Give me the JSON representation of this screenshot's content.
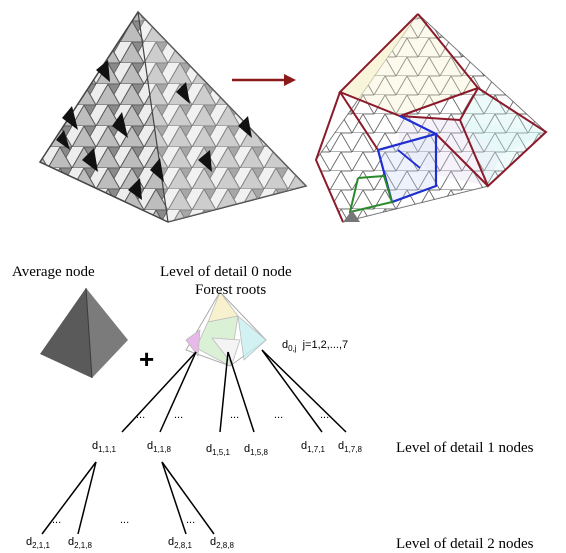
{
  "labels": {
    "average_node": "Average node",
    "lod0_line1": "Level of detail 0 node",
    "lod0_line2": "Forest roots",
    "lod1": "Level of detail 1 nodes",
    "lod2": "Level of detail 2 nodes",
    "plus": "+",
    "ellipsis": "...",
    "d0_base": "d",
    "d0_sub": "0,j",
    "d0_range": "j=1,2,...,7"
  },
  "lod1_nodes": [
    {
      "base": "d",
      "sub": "1,1,1"
    },
    {
      "base": "d",
      "sub": "1,1,8"
    },
    {
      "base": "d",
      "sub": "1,5,1"
    },
    {
      "base": "d",
      "sub": "1,5,8"
    },
    {
      "base": "d",
      "sub": "1,7,1"
    },
    {
      "base": "d",
      "sub": "1,7,8"
    }
  ],
  "lod2_nodes": [
    {
      "base": "d",
      "sub": "2,1,1"
    },
    {
      "base": "d",
      "sub": "2,1,8"
    },
    {
      "base": "d",
      "sub": "2,8,1"
    },
    {
      "base": "d",
      "sub": "2,8,8"
    }
  ],
  "colors": {
    "arrow": "#8b1a1a",
    "plus": "#c0392b",
    "outline_red": "#8b1a2a",
    "outline_blue": "#1f2fd0",
    "outline_green": "#2a8a2a",
    "tint_yellow": "#f6f0c8",
    "tint_blue": "#c9d6f5",
    "tint_cyan": "#c6eef0",
    "tint_purple": "#dcd3ef",
    "average_node": "#5a5a5a"
  }
}
